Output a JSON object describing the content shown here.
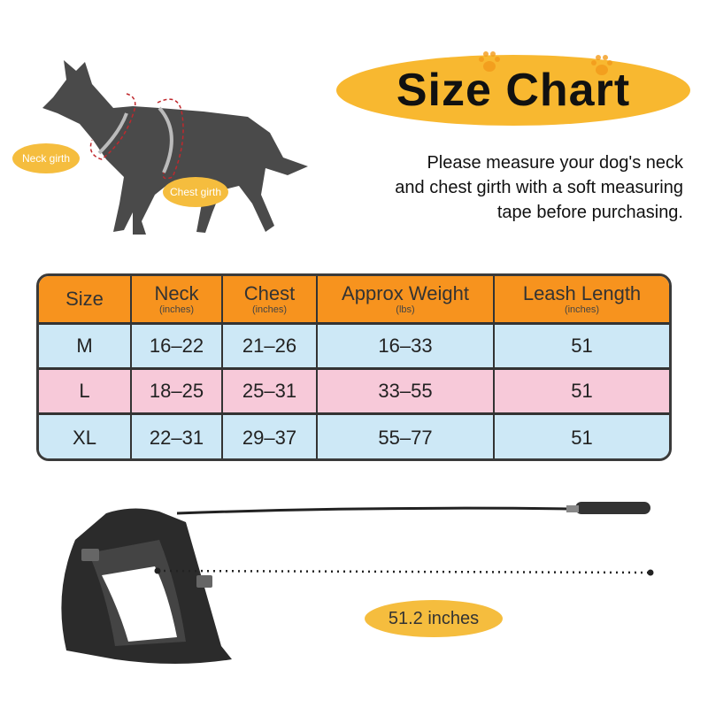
{
  "title": "Size Chart",
  "instructions": [
    "Please measure your dog's neck",
    "and chest girth with a soft measuring",
    "tape before purchasing."
  ],
  "dog_labels": {
    "neck": "Neck girth",
    "chest": "Chest girth"
  },
  "table": {
    "headers": [
      {
        "label": "Size",
        "unit": ""
      },
      {
        "label": "Neck",
        "unit": "(inches)"
      },
      {
        "label": "Chest",
        "unit": "(inches)"
      },
      {
        "label": "Approx Weight",
        "unit": "(lbs)"
      },
      {
        "label": "Leash Length",
        "unit": "(inches)"
      }
    ],
    "rows": [
      [
        "M",
        "16–22",
        "21–26",
        "16–33",
        "51"
      ],
      [
        "L",
        "18–25",
        "25–31",
        "33–55",
        "51"
      ],
      [
        "XL",
        "22–31",
        "29–37",
        "55–77",
        "51"
      ]
    ]
  },
  "leash_length_label": "51.2 inches",
  "colors": {
    "header": "#f7931e",
    "row_blue": "#cde8f6",
    "row_pink": "#f7c9d9",
    "accent_yellow": "#f5bd3e"
  }
}
